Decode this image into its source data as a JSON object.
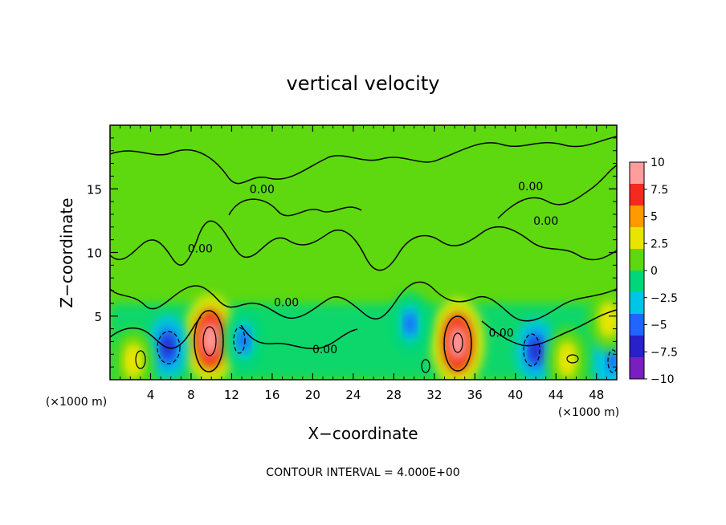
{
  "chart_data": {
    "type": "heatmap",
    "title": "vertical velocity",
    "xlabel": "X−coordinate",
    "ylabel": "Z−coordinate",
    "x_unit": "(×1000 m)",
    "y_unit": "(×1000 m)",
    "footer": "CONTOUR INTERVAL = 4.000E+00",
    "xlim": [
      0,
      50
    ],
    "ylim": [
      0,
      20
    ],
    "x_ticks": [
      4,
      8,
      12,
      16,
      20,
      24,
      28,
      32,
      36,
      40,
      44,
      48
    ],
    "x_tick_labels": [
      "4",
      "8",
      "12",
      "16",
      "20",
      "24",
      "28",
      "32",
      "36",
      "40",
      "44",
      "48"
    ],
    "y_ticks": [
      5,
      10,
      15
    ],
    "y_tick_labels": [
      "5",
      "10",
      "15"
    ],
    "colorbar": {
      "min": -10,
      "max": 10,
      "levels": [
        10,
        7.5,
        5,
        2.5,
        0,
        -2.5,
        -5,
        -7.5,
        -10
      ],
      "labels": [
        "10",
        "7.5",
        "5",
        "2.5",
        "0",
        "−2.5",
        "−5",
        "−7.5",
        "−10"
      ],
      "colors": [
        "#ff9d9d",
        "#f42a1e",
        "#ff9a00",
        "#e8e600",
        "#5ed80f",
        "#00d77a",
        "#00c4e8",
        "#1f65ff",
        "#2820c8",
        "#7a1ec0"
      ]
    },
    "contour_labels": [
      {
        "text": "0.00",
        "x": 15,
        "z": 15
      },
      {
        "text": "0.00",
        "x": 8.9,
        "z": 10.3
      },
      {
        "text": "0.00",
        "x": 17.4,
        "z": 6.1
      },
      {
        "text": "0.00",
        "x": 21.2,
        "z": 2.4
      },
      {
        "text": "0.00",
        "x": 41.5,
        "z": 15.2
      },
      {
        "text": "0.00",
        "x": 43,
        "z": 12.5
      },
      {
        "text": "0.00",
        "x": 38.6,
        "z": 3.7
      }
    ],
    "features": [
      {
        "type": "updraft",
        "x": 9.9,
        "z": 3.2,
        "peak": 10
      },
      {
        "type": "updraft",
        "x": 34.3,
        "z": 2.9,
        "peak": 9
      },
      {
        "type": "downdraft",
        "x": 5.7,
        "z": 2.6,
        "peak": -6
      },
      {
        "type": "downdraft",
        "x": 42,
        "z": 2.3,
        "peak": -6
      },
      {
        "type": "downdraft",
        "x": 13.2,
        "z": 3.1,
        "peak": -4
      },
      {
        "type": "downdraft",
        "x": 49.6,
        "z": 1.5,
        "peak": -5
      },
      {
        "type": "downdraft",
        "x": 29.6,
        "z": 4.4,
        "peak": -4
      },
      {
        "type": "updraft",
        "x": 2.3,
        "z": 1.5,
        "peak": 4
      },
      {
        "type": "updraft",
        "x": 45.1,
        "z": 1.6,
        "peak": 4
      },
      {
        "type": "updraft",
        "x": 49.2,
        "z": 4.7,
        "peak": 4
      }
    ]
  }
}
